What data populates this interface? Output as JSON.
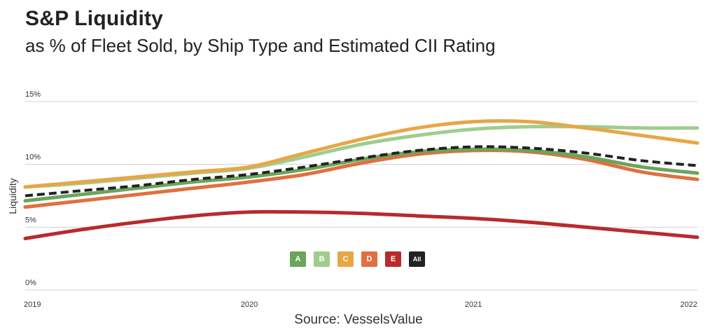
{
  "title": "S&P Liquidity",
  "subtitle": "as % of Fleet Sold, by Ship Type and Estimated CII Rating",
  "source": "Source: VesselsValue",
  "chart_data": {
    "type": "line",
    "title": "S&P Liquidity",
    "subtitle": "as % of Fleet Sold, by Ship Type and Estimated CII Rating",
    "xlabel": "",
    "ylabel": "Liquidity",
    "xlim": [
      2019,
      2022
    ],
    "ylim": [
      0,
      15
    ],
    "x_ticks": [
      "2019",
      "2020",
      "2021",
      "2022"
    ],
    "y_ticks": [
      "0%",
      "5%",
      "10%",
      "15%"
    ],
    "grid": true,
    "x": [
      2019,
      2019.25,
      2019.5,
      2019.75,
      2020,
      2020.25,
      2020.5,
      2020.75,
      2021,
      2021.25,
      2021.5,
      2021.75,
      2022
    ],
    "series": [
      {
        "name": "E",
        "label": "E",
        "color": "#b82a2c",
        "dashed": false,
        "values": [
          4.1,
          4.8,
          5.4,
          5.9,
          6.2,
          6.2,
          6.1,
          5.9,
          5.7,
          5.4,
          5.0,
          4.6,
          4.2
        ]
      },
      {
        "name": "D",
        "label": "D",
        "color": "#e07040",
        "dashed": false,
        "values": [
          6.6,
          7.1,
          7.6,
          8.1,
          8.6,
          9.2,
          10.1,
          10.8,
          11.1,
          11.0,
          10.4,
          9.4,
          8.8
        ]
      },
      {
        "name": "A",
        "label": "A",
        "color": "#6aa55a",
        "dashed": false,
        "values": [
          7.1,
          7.6,
          8.1,
          8.6,
          9.0,
          9.6,
          10.4,
          11.0,
          11.2,
          11.1,
          10.6,
          9.8,
          9.3
        ]
      },
      {
        "name": "B",
        "label": "B",
        "color": "#9fcd8e",
        "dashed": false,
        "values": [
          8.2,
          8.5,
          8.9,
          9.3,
          9.7,
          10.6,
          11.6,
          12.3,
          12.8,
          13.0,
          13.0,
          12.9,
          12.9
        ]
      },
      {
        "name": "C",
        "label": "C",
        "color": "#e8a646",
        "dashed": false,
        "values": [
          8.2,
          8.6,
          9.0,
          9.4,
          9.8,
          10.9,
          12.0,
          12.9,
          13.4,
          13.4,
          12.9,
          12.3,
          11.7
        ]
      },
      {
        "name": "All",
        "label": "All",
        "color": "#222222",
        "dashed": true,
        "values": [
          7.5,
          7.9,
          8.3,
          8.8,
          9.2,
          9.8,
          10.5,
          11.1,
          11.4,
          11.3,
          10.9,
          10.3,
          9.9
        ]
      }
    ],
    "legend": {
      "placement": "bottom-center",
      "items": [
        {
          "label": "A",
          "color": "#6aa55a"
        },
        {
          "label": "B",
          "color": "#9fcd8e"
        },
        {
          "label": "C",
          "color": "#e8a646"
        },
        {
          "label": "D",
          "color": "#e07040"
        },
        {
          "label": "E",
          "color": "#b82a2c"
        },
        {
          "label": "All",
          "color": "#222222"
        }
      ]
    }
  }
}
